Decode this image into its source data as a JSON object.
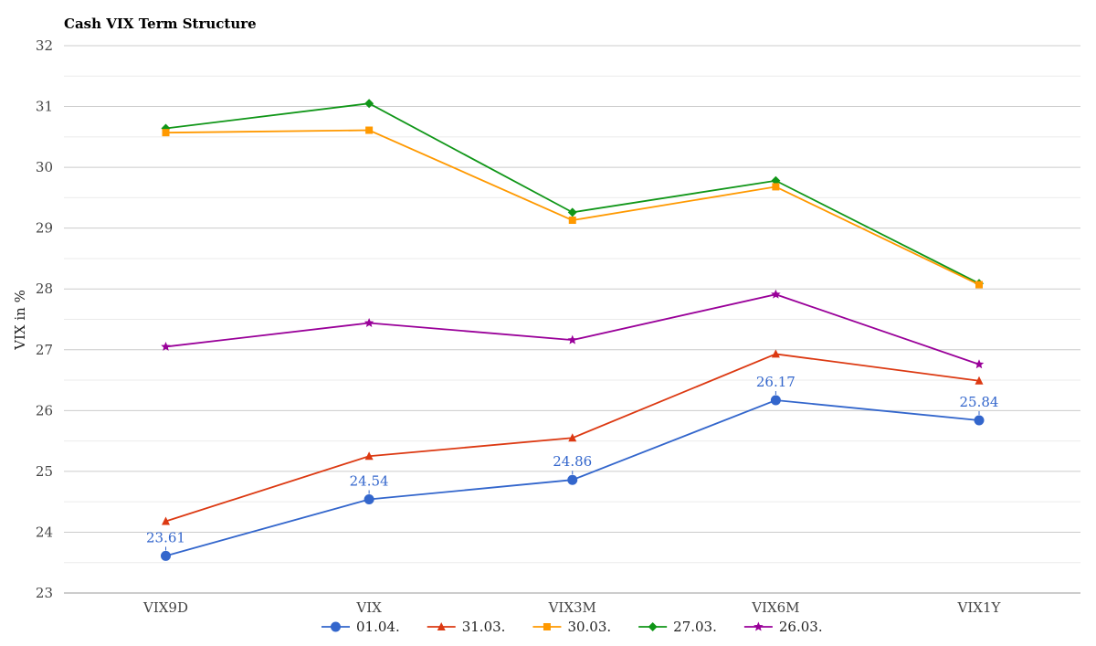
{
  "chart_data": {
    "type": "line",
    "title": "Cash VIX Term Structure",
    "xlabel": "",
    "ylabel": "VIX in %",
    "ylim": [
      23,
      32
    ],
    "yticks": [
      "23",
      "24",
      "25",
      "26",
      "27",
      "28",
      "29",
      "30",
      "31",
      "32"
    ],
    "grid": true,
    "legend_position": "bottom",
    "categories": [
      "VIX9D",
      "VIX",
      "VIX3M",
      "VIX6M",
      "VIX1Y"
    ],
    "series": [
      {
        "name": "01.04.",
        "color": "#3366cc",
        "marker": "circle",
        "values": [
          23.61,
          24.54,
          24.86,
          26.17,
          25.84
        ],
        "data_labels": [
          "23.61",
          "24.54",
          "24.86",
          "26.17",
          "25.84"
        ]
      },
      {
        "name": "31.03.",
        "color": "#dc3912",
        "marker": "triangle",
        "values": [
          24.18,
          25.25,
          25.55,
          26.93,
          26.49
        ]
      },
      {
        "name": "30.03.",
        "color": "#ff9900",
        "marker": "square",
        "values": [
          30.57,
          30.61,
          29.13,
          29.68,
          28.07
        ]
      },
      {
        "name": "27.03.",
        "color": "#109618",
        "marker": "diamond",
        "values": [
          30.64,
          31.05,
          29.26,
          29.78,
          28.09
        ]
      },
      {
        "name": "26.03.",
        "color": "#990099",
        "marker": "star",
        "values": [
          27.05,
          27.44,
          27.16,
          27.91,
          26.76
        ]
      }
    ]
  }
}
